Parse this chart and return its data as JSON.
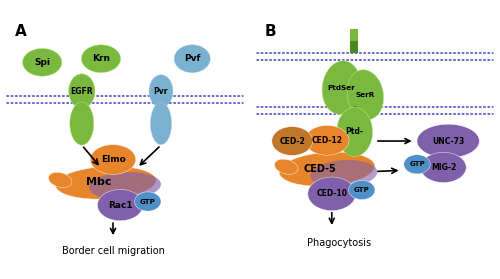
{
  "fig_width": 5.0,
  "fig_height": 2.79,
  "dpi": 100,
  "bg": "#ffffff",
  "green": "#7ab840",
  "green_dark": "#4a8820",
  "blue_rec": "#7ab0d0",
  "orange": "#e8852a",
  "purple": "#8060aa",
  "blue_gtp": "#5090c8",
  "brown": "#c07828",
  "mem_color": "#2828bb",
  "panel_A": "A",
  "panel_B": "B",
  "title_A": "Border cell migration",
  "title_B": "Phagocytosis"
}
